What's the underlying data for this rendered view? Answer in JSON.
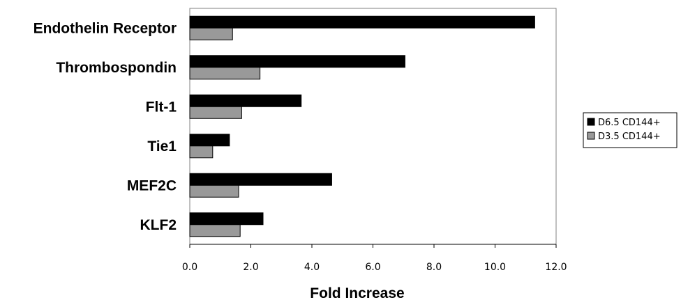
{
  "chart_data": {
    "type": "bar",
    "orientation": "horizontal",
    "categories": [
      "Endothelin Receptor",
      "Thrombospondin",
      "Flt-1",
      "Tie1",
      "MEF2C",
      "KLF2"
    ],
    "series": [
      {
        "name": "D6.5 CD144+",
        "color": "#000000",
        "values": [
          11.3,
          7.05,
          3.65,
          1.3,
          4.65,
          2.4
        ]
      },
      {
        "name": "D3.5 CD144+",
        "color": "#999999",
        "values": [
          1.4,
          2.3,
          1.7,
          0.75,
          1.6,
          1.65
        ]
      }
    ],
    "title": "",
    "xlabel": "Fold Increase",
    "ylabel": "",
    "xlim": [
      0,
      12
    ],
    "xticks": [
      "0.0",
      "2.0",
      "4.0",
      "6.0",
      "8.0",
      "10.0",
      "12.0"
    ],
    "grid": false,
    "legend_position": "right"
  }
}
